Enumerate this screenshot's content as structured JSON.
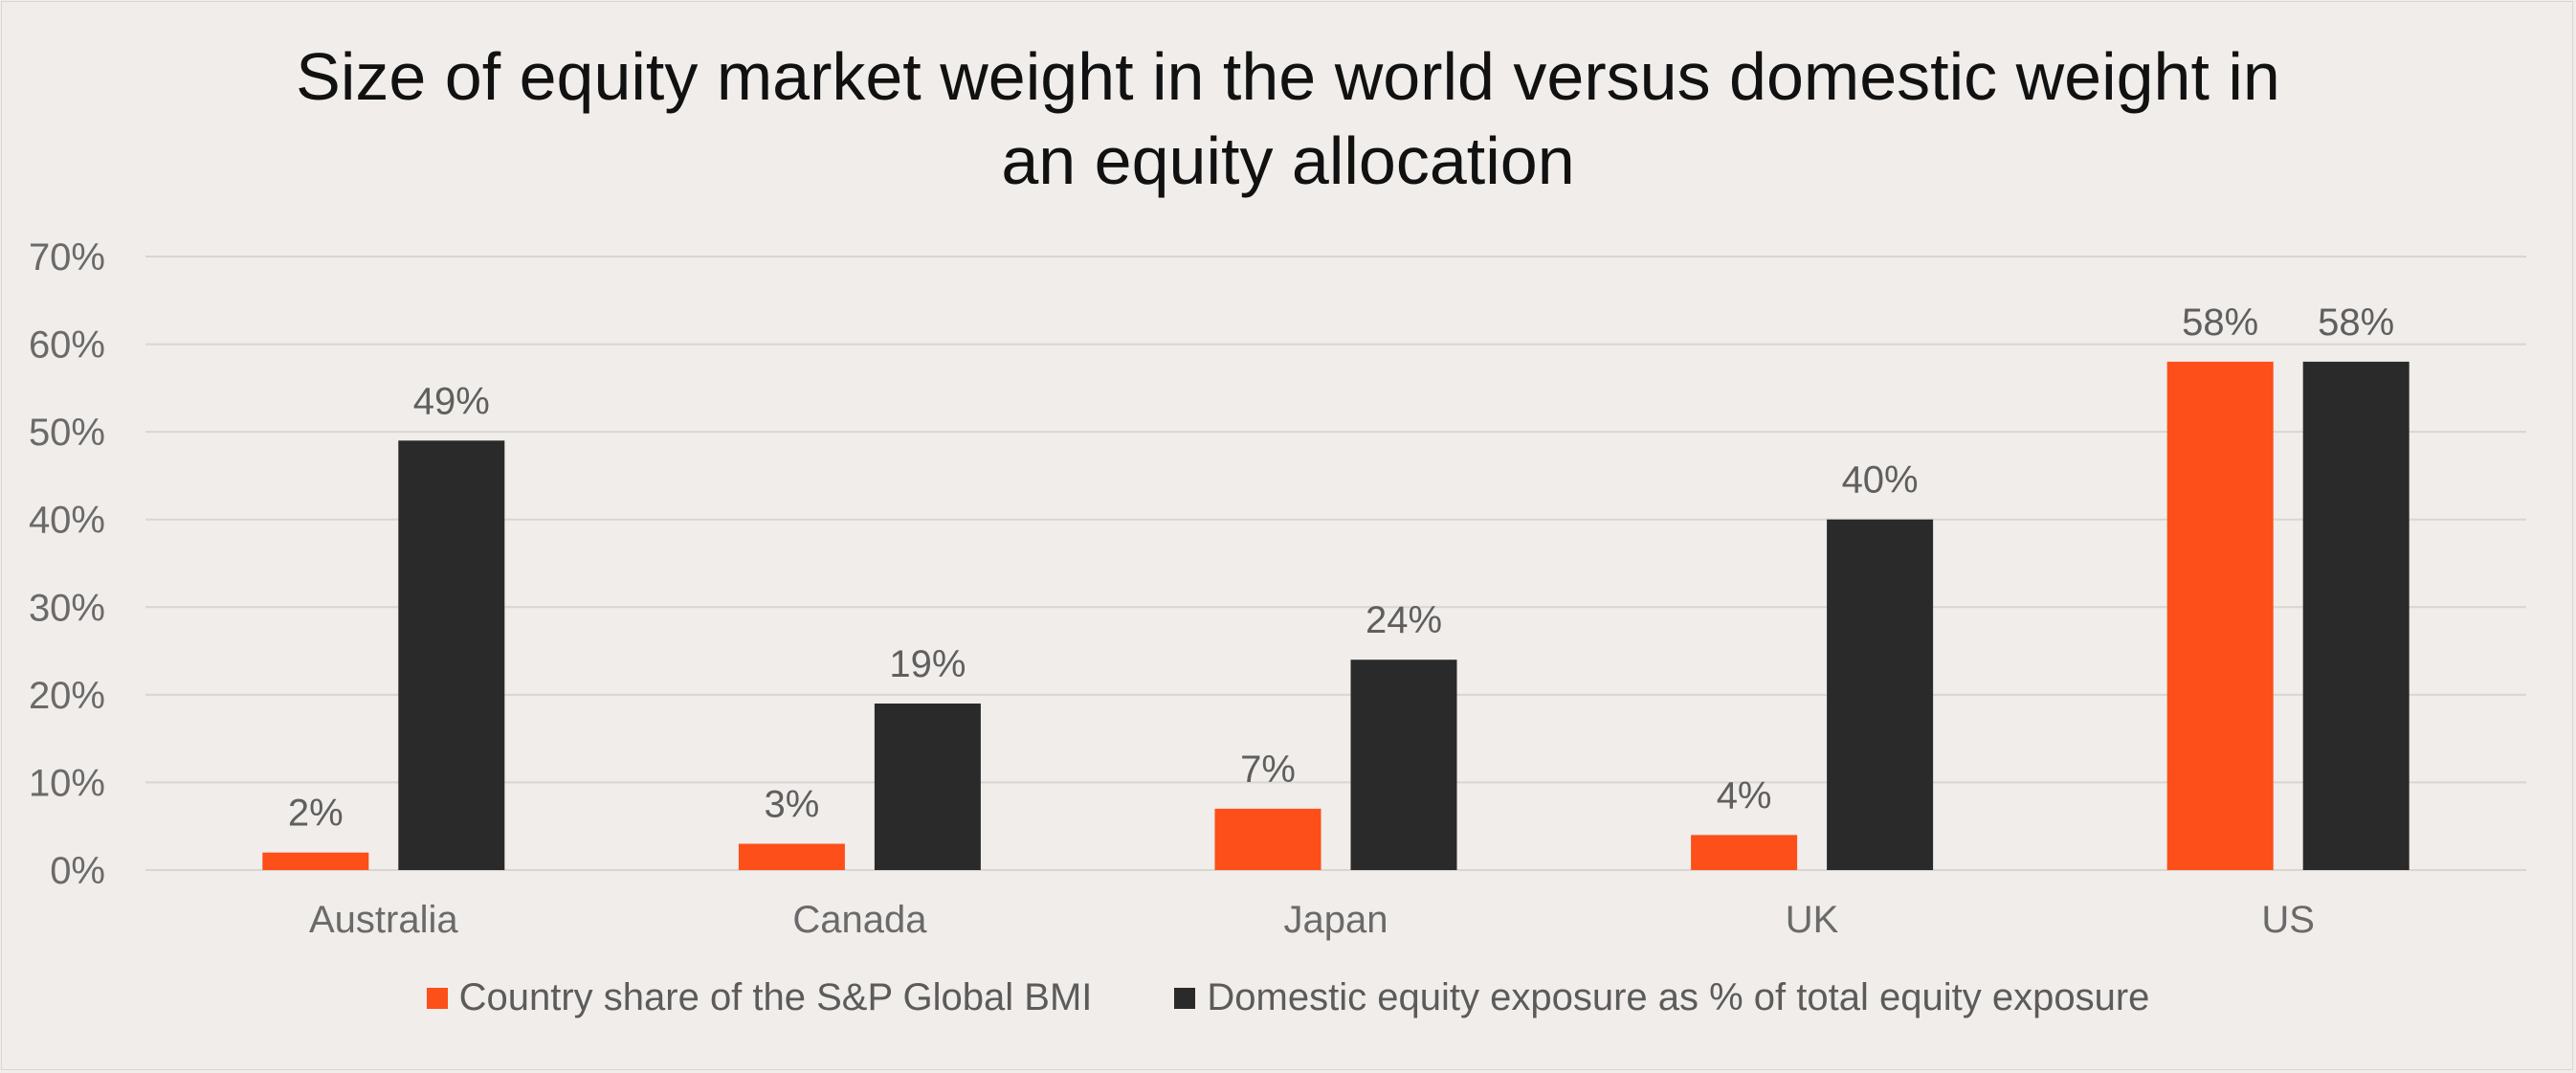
{
  "chart_data": {
    "type": "bar",
    "title_line1": "Size of equity market weight in the world versus domestic weight in",
    "title_line2": "an equity allocation",
    "categories": [
      "Australia",
      "Canada",
      "Japan",
      "UK",
      "US"
    ],
    "series": [
      {
        "name": "Country share of the S&P Global BMI",
        "color": "#fc4f19",
        "values": [
          2,
          3,
          7,
          4,
          58
        ],
        "labels": [
          "2%",
          "3%",
          "7%",
          "4%",
          "58%"
        ]
      },
      {
        "name": "Domestic equity exposure as % of total equity exposure",
        "color": "#2a2a2a",
        "values": [
          49,
          19,
          24,
          40,
          58
        ],
        "labels": [
          "49%",
          "19%",
          "24%",
          "40%",
          "58%"
        ]
      }
    ],
    "ylim": [
      0,
      70
    ],
    "yticks": [
      "0%",
      "10%",
      "20%",
      "30%",
      "40%",
      "50%",
      "60%",
      "70%"
    ],
    "grid": true,
    "legend_position": "bottom"
  }
}
